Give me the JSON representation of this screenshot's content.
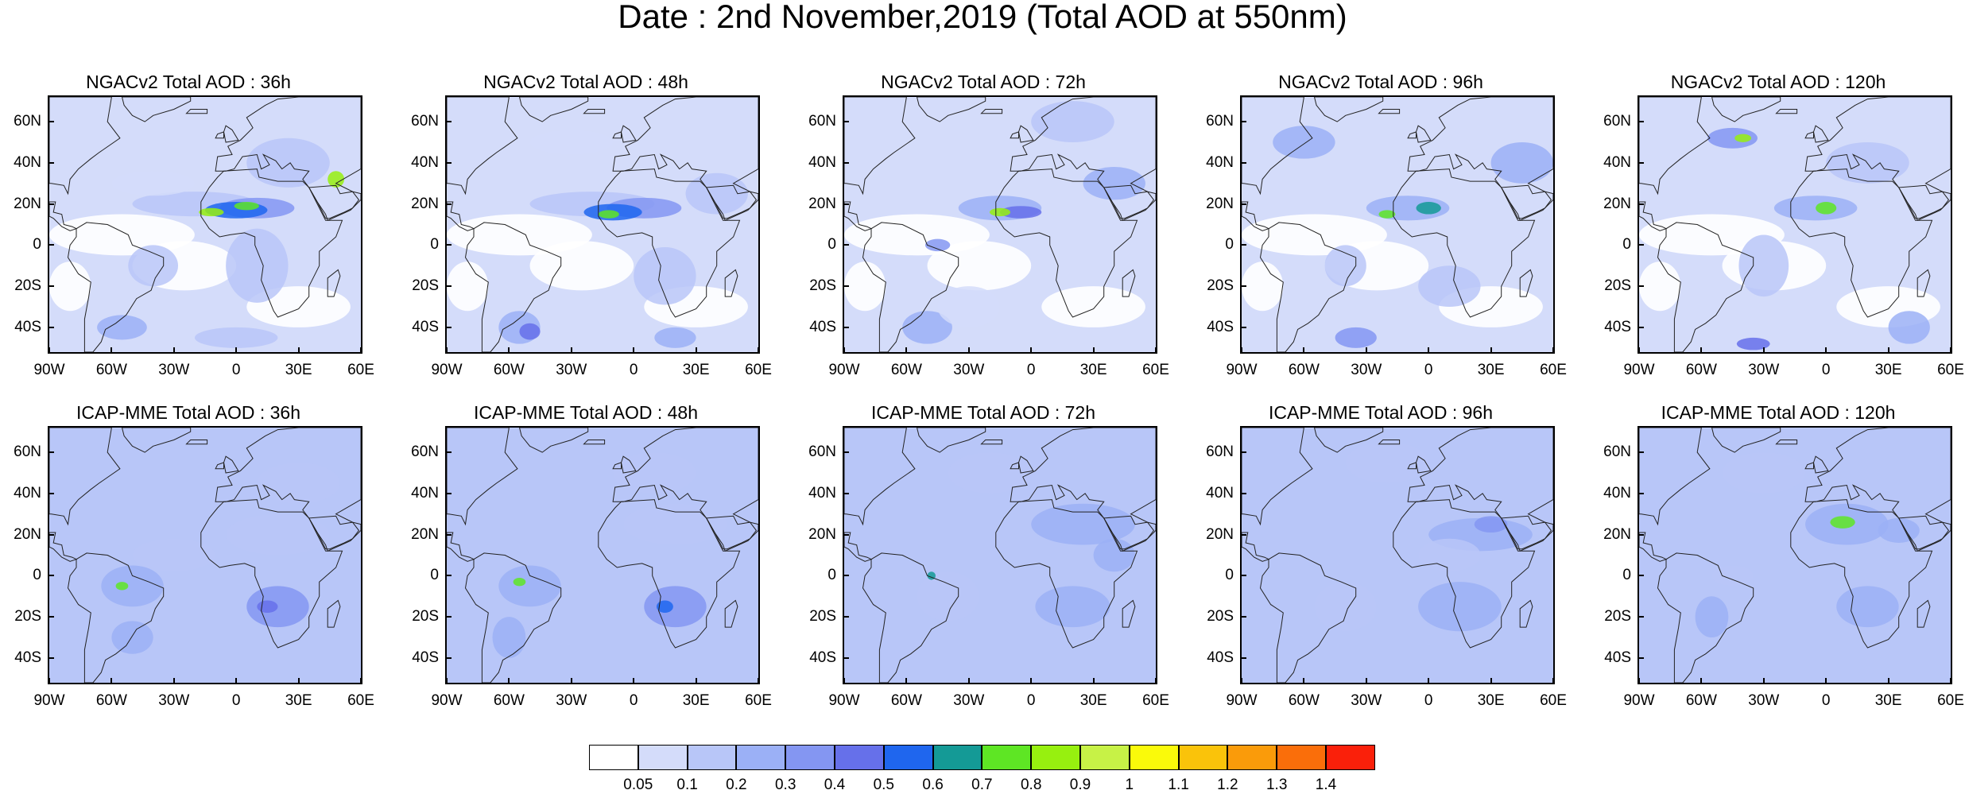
{
  "title": "Date : 2nd November,2019 (Total AOD at 550nm)",
  "panels": [
    {
      "title": "NGACv2 Total AOD : 36h",
      "model": "NGACv2",
      "lead": "36h"
    },
    {
      "title": "NGACv2 Total AOD : 48h",
      "model": "NGACv2",
      "lead": "48h"
    },
    {
      "title": "NGACv2 Total AOD : 72h",
      "model": "NGACv2",
      "lead": "72h"
    },
    {
      "title": "NGACv2 Total AOD : 96h",
      "model": "NGACv2",
      "lead": "96h"
    },
    {
      "title": "NGACv2 Total AOD : 120h",
      "model": "NGACv2",
      "lead": "120h"
    },
    {
      "title": "ICAP-MME Total AOD : 36h",
      "model": "ICAP-MME",
      "lead": "36h"
    },
    {
      "title": "ICAP-MME Total AOD : 48h",
      "model": "ICAP-MME",
      "lead": "48h"
    },
    {
      "title": "ICAP-MME Total AOD : 72h",
      "model": "ICAP-MME",
      "lead": "72h"
    },
    {
      "title": "ICAP-MME Total AOD : 96h",
      "model": "ICAP-MME",
      "lead": "96h"
    },
    {
      "title": "ICAP-MME Total AOD : 120h",
      "model": "ICAP-MME",
      "lead": "120h"
    }
  ],
  "axes": {
    "lat_labels": [
      "60N",
      "40N",
      "20N",
      "0",
      "20S",
      "40S"
    ],
    "lon_labels": [
      "90W",
      "60W",
      "30W",
      "0",
      "30E",
      "60E"
    ],
    "lat_range": [
      -52,
      72
    ],
    "lon_range": [
      -90,
      60
    ]
  },
  "colorbar": {
    "labels": [
      "0.05",
      "0.1",
      "0.2",
      "0.3",
      "0.4",
      "0.5",
      "0.6",
      "0.7",
      "0.8",
      "0.9",
      "1",
      "1.1",
      "1.2",
      "1.3",
      "1.4"
    ],
    "colors": [
      "#ffffff",
      "#d4dcfa",
      "#b8c6f8",
      "#9bb0f6",
      "#8496f2",
      "#6670ea",
      "#1f66ee",
      "#149a96",
      "#5ee624",
      "#97f00f",
      "#c7f246",
      "#fafa0a",
      "#fac30a",
      "#fa9b0a",
      "#fa6e0a",
      "#fa200a"
    ]
  }
}
